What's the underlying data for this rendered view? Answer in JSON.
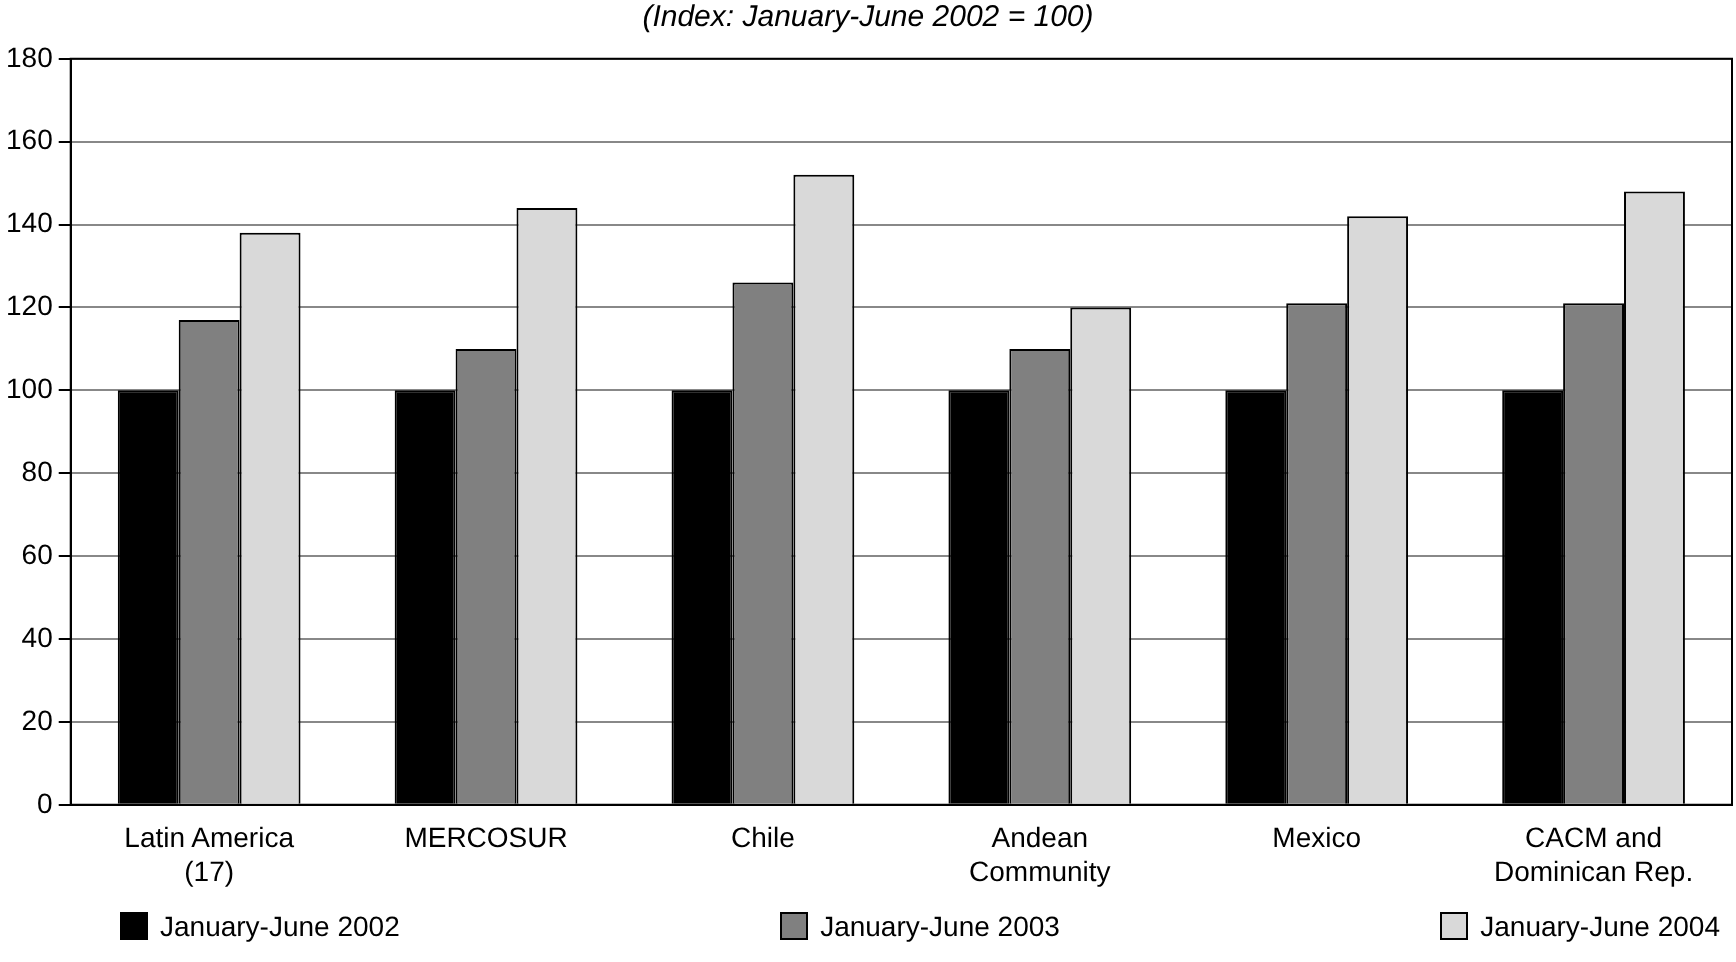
{
  "chart_data": {
    "type": "bar",
    "subtitle": "(Index: January-June 2002 = 100)",
    "categories": [
      "Latin America (17)",
      "MERCOSUR",
      "Chile",
      "Andean Community",
      "Mexico",
      "CACM and Dominican Rep."
    ],
    "series": [
      {
        "name": "January-June 2002",
        "color": "#000000",
        "values": [
          100,
          100,
          100,
          100,
          100,
          100
        ]
      },
      {
        "name": "January-June 2003",
        "color": "#808080",
        "values": [
          117,
          110,
          126,
          110,
          121,
          121
        ]
      },
      {
        "name": "January-June 2004",
        "color": "#d9d9d9",
        "values": [
          138,
          144,
          152,
          120,
          142,
          148
        ]
      }
    ],
    "ylim": [
      0,
      180
    ],
    "yticks": [
      0,
      20,
      40,
      60,
      80,
      100,
      120,
      140,
      160,
      180
    ],
    "grid": "y",
    "legend": "bottom"
  }
}
